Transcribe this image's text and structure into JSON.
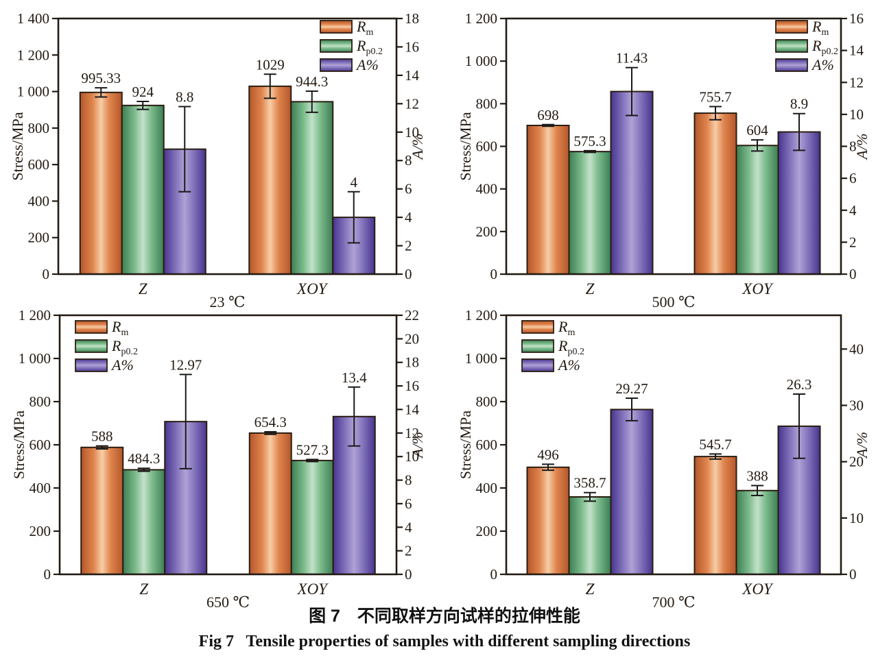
{
  "figure": {
    "caption_zh": "图 7　不同取样方向试样的拉伸性能",
    "caption_en": "Fig 7   Tensile properties of samples with different sampling directions"
  },
  "legend": {
    "items": [
      {
        "series": "Rm",
        "main": "R",
        "sub": "m"
      },
      {
        "series": "Rp0.2",
        "main": "R",
        "sub": "p0.2"
      },
      {
        "series": "A%",
        "main": "A%",
        "sub": ""
      }
    ]
  },
  "colors": {
    "rm_edge": "#b3572a",
    "rm_mid": "#e0854e",
    "rm_center": "#f7cda6",
    "rp_edge": "#3c7e53",
    "rp_mid": "#7cbb8c",
    "rp_center": "#c3e2c9",
    "a_edge": "#47348f",
    "a_mid": "#8576bd",
    "a_center": "#b0a1d6",
    "bar_border": "#2a1c10",
    "axis": "#231a12",
    "error": "#1a1a1a",
    "text": "#231a12"
  },
  "chart_data": [
    {
      "type": "bar",
      "temperature_label": "23 ℃",
      "categories": [
        "Z",
        "XOY"
      ],
      "legend_position": "top-right",
      "grid": false,
      "left_axis": {
        "title": "Stress/MPa",
        "min": 0,
        "max": 1400,
        "ticks": [
          0,
          200,
          400,
          600,
          800,
          1000,
          1200,
          1400
        ],
        "tick_labels": [
          "0",
          "200",
          "400",
          "600",
          "800",
          "1 000",
          "1 200",
          "1 400"
        ]
      },
      "right_axis": {
        "title": "A/%",
        "min": 0,
        "max": 18,
        "ticks": [
          0,
          2,
          4,
          6,
          8,
          10,
          12,
          14,
          16,
          18
        ],
        "tick_labels": [
          "0",
          "2",
          "4",
          "6",
          "8",
          "10",
          "12",
          "14",
          "16",
          "18"
        ]
      },
      "series": [
        {
          "name": "Rm",
          "axis": "left",
          "values": [
            995.33,
            1029
          ],
          "errors": [
            25,
            66
          ],
          "value_labels": [
            "995.33",
            "1029"
          ]
        },
        {
          "name": "Rp0.2",
          "axis": "left",
          "values": [
            924,
            944.3
          ],
          "errors": [
            22,
            58
          ],
          "value_labels": [
            "924",
            "944.3"
          ]
        },
        {
          "name": "A%",
          "axis": "right",
          "values": [
            8.8,
            4
          ],
          "errors": [
            3.0,
            1.8
          ],
          "value_labels": [
            "8.8",
            "4"
          ]
        }
      ]
    },
    {
      "type": "bar",
      "temperature_label": "500 ℃",
      "categories": [
        "Z",
        "XOY"
      ],
      "legend_position": "top-right",
      "grid": false,
      "left_axis": {
        "title": "Stress/MPa",
        "min": 0,
        "max": 1200,
        "ticks": [
          0,
          200,
          400,
          600,
          800,
          1000,
          1200
        ],
        "tick_labels": [
          "0",
          "200",
          "400",
          "600",
          "800",
          "1 000",
          "1 200"
        ]
      },
      "right_axis": {
        "title": "A/%",
        "min": 0,
        "max": 16,
        "ticks": [
          0,
          2,
          4,
          6,
          8,
          10,
          12,
          14,
          16
        ],
        "tick_labels": [
          "0",
          "2",
          "4",
          "6",
          "8",
          "10",
          "12",
          "14",
          "16"
        ]
      },
      "series": [
        {
          "name": "Rm",
          "axis": "left",
          "values": [
            698,
            755.7
          ],
          "errors": [
            4,
            31
          ],
          "value_labels": [
            "698",
            "755.7"
          ]
        },
        {
          "name": "Rp0.2",
          "axis": "left",
          "values": [
            575.3,
            604
          ],
          "errors": [
            4,
            26
          ],
          "value_labels": [
            "575.3",
            "604"
          ]
        },
        {
          "name": "A%",
          "axis": "right",
          "values": [
            11.43,
            8.9
          ],
          "errors": [
            1.5,
            1.15
          ],
          "value_labels": [
            "11.43",
            "8.9"
          ]
        }
      ]
    },
    {
      "type": "bar",
      "temperature_label": "650 ℃",
      "categories": [
        "Z",
        "XOY"
      ],
      "legend_position": "top-left",
      "grid": false,
      "left_axis": {
        "title": "Stress/MPa",
        "min": 0,
        "max": 1200,
        "ticks": [
          0,
          200,
          400,
          600,
          800,
          1000,
          1200
        ],
        "tick_labels": [
          "0",
          "200",
          "400",
          "600",
          "800",
          "1 000",
          "1 200"
        ]
      },
      "right_axis": {
        "title": "A/%",
        "min": 0,
        "max": 22,
        "ticks": [
          0,
          2,
          4,
          6,
          8,
          10,
          12,
          14,
          16,
          18,
          20,
          22
        ],
        "tick_labels": [
          "0",
          "2",
          "4",
          "6",
          "8",
          "10",
          "12",
          "14",
          "16",
          "18",
          "20",
          "22"
        ]
      },
      "series": [
        {
          "name": "Rm",
          "axis": "left",
          "values": [
            588,
            654.3
          ],
          "errors": [
            7,
            6
          ],
          "value_labels": [
            "588",
            "654.3"
          ]
        },
        {
          "name": "Rp0.2",
          "axis": "left",
          "values": [
            484.3,
            527.3
          ],
          "errors": [
            7,
            5
          ],
          "value_labels": [
            "484.3",
            "527.3"
          ]
        },
        {
          "name": "A%",
          "axis": "right",
          "values": [
            12.97,
            13.4
          ],
          "errors": [
            4.0,
            2.5
          ],
          "value_labels": [
            "12.97",
            "13.4"
          ]
        }
      ]
    },
    {
      "type": "bar",
      "temperature_label": "700 ℃",
      "categories": [
        "Z",
        "XOY"
      ],
      "legend_position": "top-left",
      "grid": false,
      "left_axis": {
        "title": "Stress/MPa",
        "min": 0,
        "max": 1200,
        "ticks": [
          0,
          200,
          400,
          600,
          800,
          1000,
          1200
        ],
        "tick_labels": [
          "0",
          "200",
          "400",
          "600",
          "800",
          "1 000",
          "1 200"
        ]
      },
      "right_axis": {
        "title": "A/%",
        "min": 0,
        "max": 46,
        "ticks": [
          0,
          10,
          20,
          30,
          40
        ],
        "tick_labels": [
          "0",
          "10",
          "20",
          "30",
          "40"
        ]
      },
      "series": [
        {
          "name": "Rm",
          "axis": "left",
          "values": [
            496,
            545.7
          ],
          "errors": [
            14,
            12
          ],
          "value_labels": [
            "496",
            "545.7"
          ]
        },
        {
          "name": "Rp0.2",
          "axis": "left",
          "values": [
            358.7,
            388
          ],
          "errors": [
            20,
            23
          ],
          "value_labels": [
            "358.7",
            "388"
          ]
        },
        {
          "name": "A%",
          "axis": "right",
          "values": [
            29.27,
            26.3
          ],
          "errors": [
            2.0,
            5.7
          ],
          "value_labels": [
            "29.27",
            "26.3"
          ]
        }
      ]
    }
  ]
}
